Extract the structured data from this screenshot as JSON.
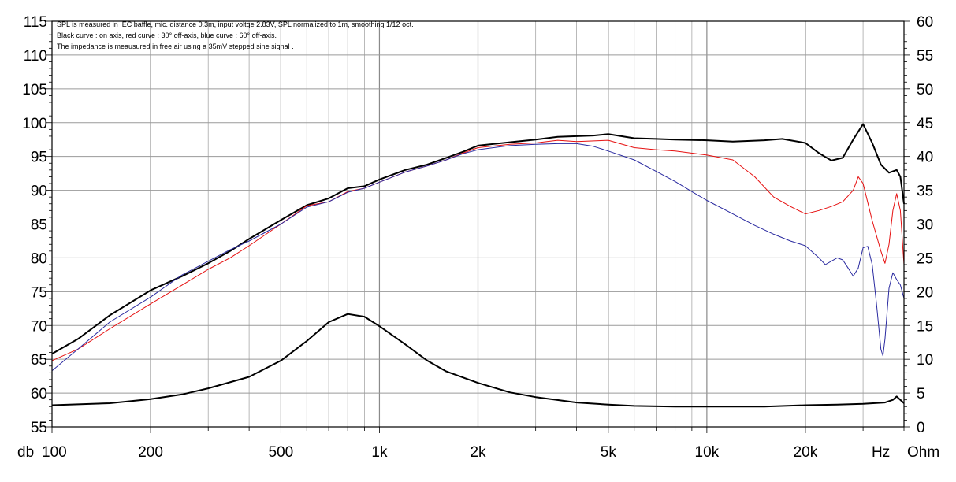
{
  "chart_data": {
    "type": "line",
    "annotations": [
      "SPL is measured in IEC baffle, mic. distance 0.3m, input voltge 2.83V, SPL normalized to 1m, smoothing 1/12 oct.",
      "Black curve : on axis, red curve : 30° off-axis, blue curve : 60° off-axis.",
      "The impedance is meausured in free air using a 35mV stepped sine signal ."
    ],
    "x_axis": {
      "scale": "log",
      "range": [
        100,
        40000
      ],
      "tick_values": [
        100,
        200,
        500,
        1000,
        2000,
        5000,
        10000,
        20000
      ],
      "tick_labels": [
        "100",
        "200",
        "500",
        "1k",
        "2k",
        "5k",
        "10k",
        "20k"
      ],
      "unit_label": "Hz"
    },
    "y_left": {
      "range": [
        55,
        115
      ],
      "tick_values": [
        55,
        60,
        65,
        70,
        75,
        80,
        85,
        90,
        95,
        100,
        105,
        110,
        115
      ],
      "tick_labels": [
        "55",
        "60",
        "65",
        "70",
        "75",
        "80",
        "85",
        "90",
        "95",
        "100",
        "105",
        "110",
        "115"
      ],
      "unit_label": "db"
    },
    "y_right": {
      "range": [
        0,
        60
      ],
      "tick_values": [
        0,
        5,
        10,
        15,
        20,
        25,
        30,
        35,
        40,
        45,
        50,
        55,
        60
      ],
      "tick_labels": [
        "0",
        "5",
        "10",
        "15",
        "20",
        "25",
        "30",
        "35",
        "40",
        "45",
        "50",
        "55",
        "60"
      ],
      "unit_label": "Ohm"
    },
    "grid": true,
    "series": [
      {
        "name": "SPL on axis",
        "color": "#000000",
        "axis": "left",
        "width": 2,
        "points": [
          [
            100,
            65.8
          ],
          [
            120,
            68
          ],
          [
            150,
            71.5
          ],
          [
            200,
            75.2
          ],
          [
            250,
            77.3
          ],
          [
            300,
            79.2
          ],
          [
            350,
            81
          ],
          [
            400,
            82.8
          ],
          [
            500,
            85.6
          ],
          [
            600,
            87.8
          ],
          [
            700,
            88.8
          ],
          [
            800,
            90.3
          ],
          [
            900,
            90.6
          ],
          [
            1000,
            91.6
          ],
          [
            1200,
            93
          ],
          [
            1400,
            93.8
          ],
          [
            1600,
            94.8
          ],
          [
            1800,
            95.7
          ],
          [
            2000,
            96.6
          ],
          [
            2500,
            97.1
          ],
          [
            3000,
            97.5
          ],
          [
            3500,
            97.9
          ],
          [
            4000,
            98
          ],
          [
            4500,
            98.1
          ],
          [
            5000,
            98.3
          ],
          [
            6000,
            97.7
          ],
          [
            7000,
            97.6
          ],
          [
            8000,
            97.5
          ],
          [
            10000,
            97.4
          ],
          [
            12000,
            97.2
          ],
          [
            15000,
            97.4
          ],
          [
            17000,
            97.6
          ],
          [
            20000,
            97
          ],
          [
            22000,
            95.5
          ],
          [
            24000,
            94.4
          ],
          [
            26000,
            94.8
          ],
          [
            28000,
            97.5
          ],
          [
            30000,
            99.8
          ],
          [
            32000,
            97
          ],
          [
            34000,
            93.8
          ],
          [
            36000,
            92.6
          ],
          [
            38000,
            93
          ],
          [
            39000,
            92
          ],
          [
            40000,
            88
          ]
        ]
      },
      {
        "name": "SPL 30° off-axis",
        "color": "#e61010",
        "axis": "left",
        "width": 1,
        "points": [
          [
            100,
            64.8
          ],
          [
            120,
            66.5
          ],
          [
            150,
            69.5
          ],
          [
            200,
            73.2
          ],
          [
            250,
            76
          ],
          [
            300,
            78.3
          ],
          [
            350,
            80
          ],
          [
            400,
            81.8
          ],
          [
            500,
            85
          ],
          [
            600,
            87.7
          ],
          [
            700,
            88.3
          ],
          [
            800,
            89.8
          ],
          [
            900,
            90.3
          ],
          [
            1000,
            91.2
          ],
          [
            1200,
            92.7
          ],
          [
            1400,
            93.6
          ],
          [
            1600,
            94.5
          ],
          [
            1800,
            95.5
          ],
          [
            2000,
            96.3
          ],
          [
            2500,
            96.8
          ],
          [
            3000,
            97
          ],
          [
            3500,
            97.4
          ],
          [
            4000,
            97.2
          ],
          [
            5000,
            97.4
          ],
          [
            6000,
            96.3
          ],
          [
            7000,
            96
          ],
          [
            8000,
            95.8
          ],
          [
            10000,
            95.2
          ],
          [
            12000,
            94.5
          ],
          [
            14000,
            92
          ],
          [
            16000,
            89
          ],
          [
            18000,
            87.6
          ],
          [
            20000,
            86.5
          ],
          [
            22000,
            87
          ],
          [
            24000,
            87.6
          ],
          [
            26000,
            88.3
          ],
          [
            28000,
            90
          ],
          [
            29000,
            92
          ],
          [
            30000,
            91
          ],
          [
            32000,
            85.5
          ],
          [
            34000,
            81
          ],
          [
            35000,
            79.2
          ],
          [
            36000,
            82
          ],
          [
            37000,
            87
          ],
          [
            38000,
            89.5
          ],
          [
            39000,
            87
          ],
          [
            40000,
            79
          ]
        ]
      },
      {
        "name": "SPL 60° off-axis",
        "color": "#2a2aa0",
        "axis": "left",
        "width": 1,
        "points": [
          [
            100,
            63.3
          ],
          [
            120,
            66.5
          ],
          [
            150,
            70.5
          ],
          [
            200,
            74.2
          ],
          [
            250,
            77.5
          ],
          [
            300,
            79.5
          ],
          [
            350,
            81.2
          ],
          [
            400,
            82.5
          ],
          [
            500,
            85
          ],
          [
            600,
            87.5
          ],
          [
            700,
            88.3
          ],
          [
            800,
            89.7
          ],
          [
            900,
            90.3
          ],
          [
            1000,
            91.2
          ],
          [
            1200,
            92.7
          ],
          [
            1400,
            93.6
          ],
          [
            1600,
            94.5
          ],
          [
            1800,
            95.4
          ],
          [
            2000,
            96
          ],
          [
            2500,
            96.6
          ],
          [
            3000,
            96.8
          ],
          [
            3500,
            96.9
          ],
          [
            4000,
            96.9
          ],
          [
            4500,
            96.5
          ],
          [
            5000,
            95.8
          ],
          [
            6000,
            94.5
          ],
          [
            7000,
            92.8
          ],
          [
            8000,
            91.3
          ],
          [
            9000,
            89.8
          ],
          [
            10000,
            88.5
          ],
          [
            12000,
            86.5
          ],
          [
            14000,
            84.8
          ],
          [
            16000,
            83.5
          ],
          [
            18000,
            82.5
          ],
          [
            20000,
            81.8
          ],
          [
            22000,
            80
          ],
          [
            23000,
            79
          ],
          [
            24000,
            79.5
          ],
          [
            25000,
            80
          ],
          [
            26000,
            79.7
          ],
          [
            27000,
            78.5
          ],
          [
            28000,
            77.3
          ],
          [
            29000,
            78.5
          ],
          [
            30000,
            81.5
          ],
          [
            31000,
            81.7
          ],
          [
            32000,
            79
          ],
          [
            33000,
            73
          ],
          [
            34000,
            66.5
          ],
          [
            34500,
            65.5
          ],
          [
            35000,
            68
          ],
          [
            36000,
            75.5
          ],
          [
            37000,
            77.8
          ],
          [
            38000,
            76.8
          ],
          [
            39000,
            76
          ],
          [
            40000,
            74
          ]
        ]
      },
      {
        "name": "Impedance",
        "color": "#000000",
        "axis": "right",
        "width": 2,
        "points": [
          [
            100,
            3.2
          ],
          [
            150,
            3.5
          ],
          [
            200,
            4.1
          ],
          [
            250,
            4.8
          ],
          [
            300,
            5.7
          ],
          [
            400,
            7.4
          ],
          [
            500,
            9.8
          ],
          [
            600,
            12.7
          ],
          [
            700,
            15.5
          ],
          [
            800,
            16.7
          ],
          [
            900,
            16.3
          ],
          [
            1000,
            14.9
          ],
          [
            1200,
            12.2
          ],
          [
            1400,
            9.8
          ],
          [
            1600,
            8.2
          ],
          [
            2000,
            6.5
          ],
          [
            2500,
            5.1
          ],
          [
            3000,
            4.4
          ],
          [
            4000,
            3.6
          ],
          [
            5000,
            3.3
          ],
          [
            6000,
            3.1
          ],
          [
            8000,
            3
          ],
          [
            10000,
            3
          ],
          [
            15000,
            3
          ],
          [
            20000,
            3.2
          ],
          [
            25000,
            3.3
          ],
          [
            30000,
            3.4
          ],
          [
            35000,
            3.6
          ],
          [
            37000,
            4
          ],
          [
            38000,
            4.5
          ],
          [
            39000,
            4
          ],
          [
            40000,
            3.5
          ]
        ]
      }
    ]
  }
}
